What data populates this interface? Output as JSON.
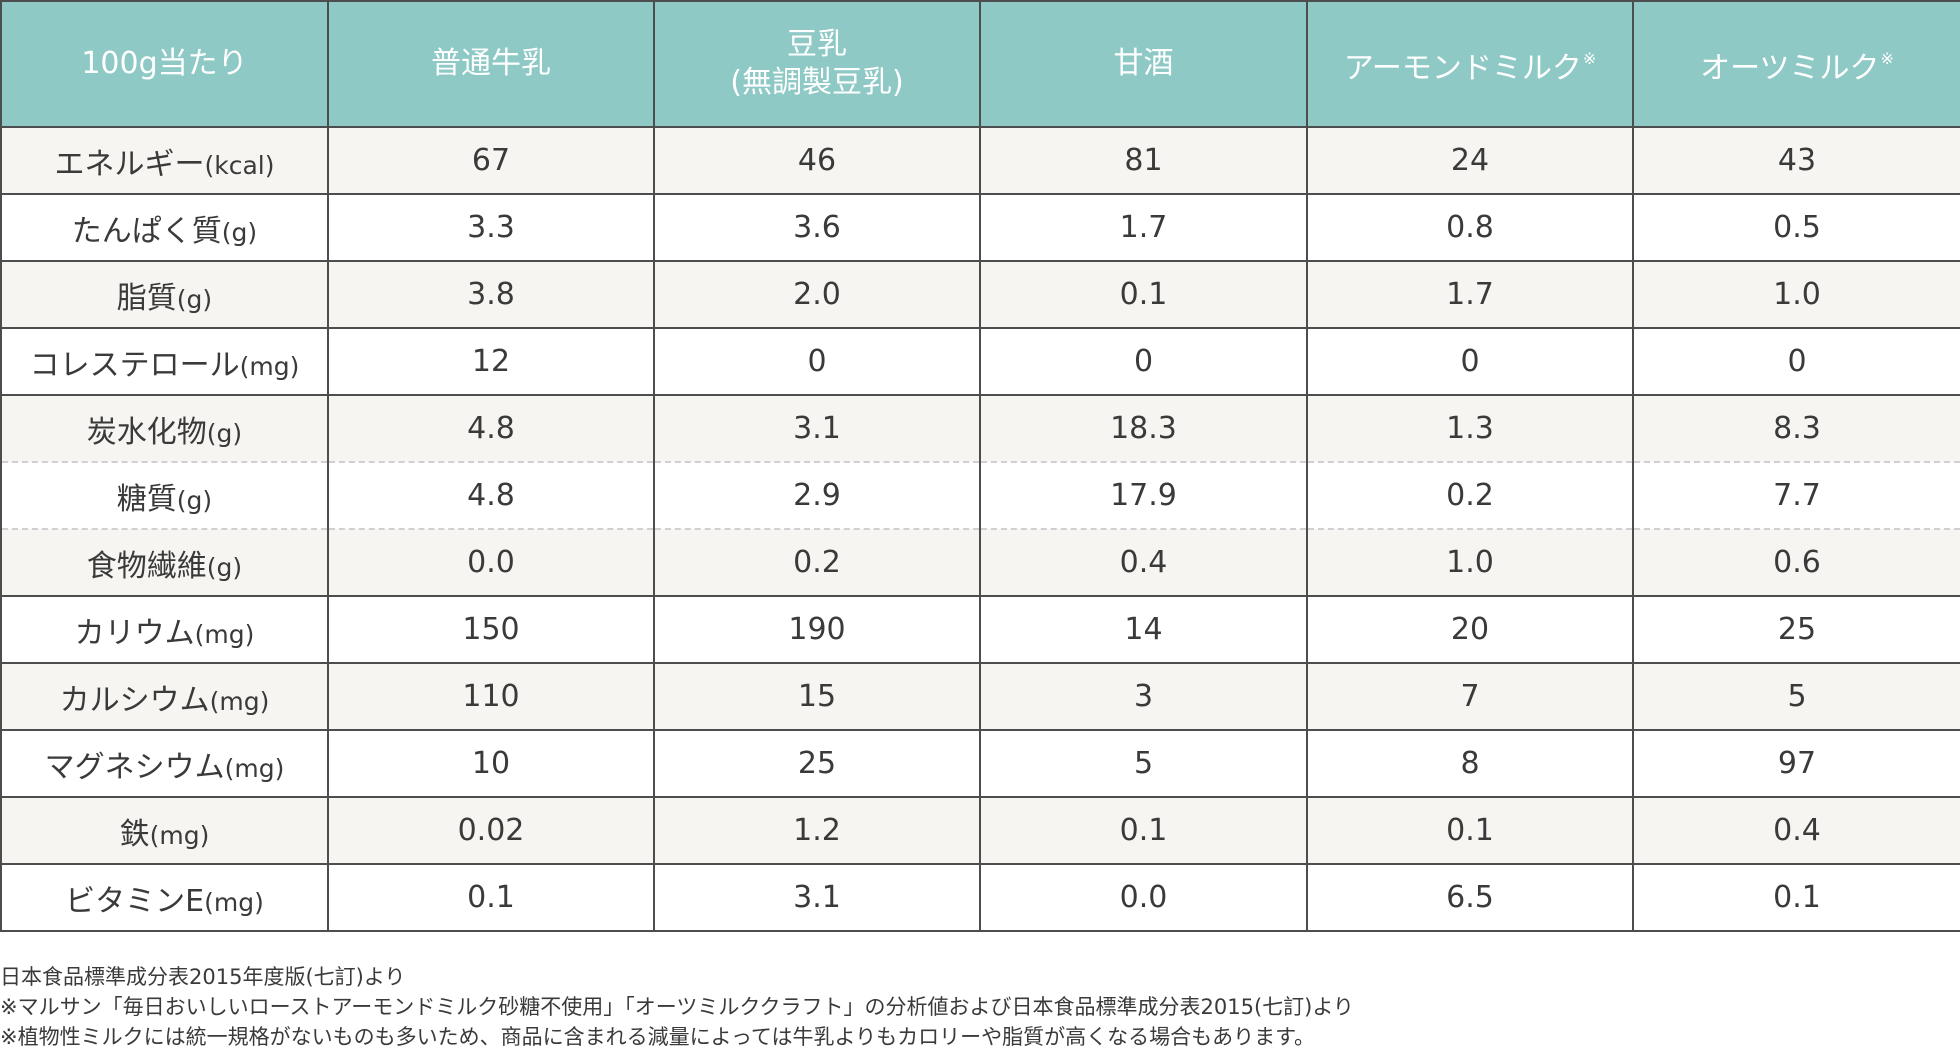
{
  "chart_data": {
    "type": "table",
    "columns": [
      {
        "label": "100g当たり",
        "mark": ""
      },
      {
        "label": "普通牛乳",
        "mark": ""
      },
      {
        "label": "豆乳",
        "label2": "(無調製豆乳)",
        "mark": ""
      },
      {
        "label": "甘酒",
        "mark": ""
      },
      {
        "label": "アーモンドミルク",
        "mark": "※"
      },
      {
        "label": "オーツミルク",
        "mark": "※"
      }
    ],
    "rows": [
      {
        "name": "エネルギー",
        "unit": "(kcal)",
        "values": [
          "67",
          "46",
          "81",
          "24",
          "43"
        ]
      },
      {
        "name": "たんぱく質",
        "unit": "(g)",
        "values": [
          "3.3",
          "3.6",
          "1.7",
          "0.8",
          "0.5"
        ]
      },
      {
        "name": "脂質",
        "unit": "(g)",
        "values": [
          "3.8",
          "2.0",
          "0.1",
          "1.7",
          "1.0"
        ]
      },
      {
        "name": "コレステロール",
        "unit": "(mg)",
        "values": [
          "12",
          "0",
          "0",
          "0",
          "0"
        ]
      },
      {
        "name": "炭水化物",
        "unit": "(g)",
        "values": [
          "4.8",
          "3.1",
          "18.3",
          "1.3",
          "8.3"
        ]
      },
      {
        "name": "糖質",
        "unit": "(g)",
        "values": [
          "4.8",
          "2.9",
          "17.9",
          "0.2",
          "7.7"
        ]
      },
      {
        "name": "食物繊維",
        "unit": "(g)",
        "values": [
          "0.0",
          "0.2",
          "0.4",
          "1.0",
          "0.6"
        ]
      },
      {
        "name": "カリウム",
        "unit": "(mg)",
        "values": [
          "150",
          "190",
          "14",
          "20",
          "25"
        ]
      },
      {
        "name": "カルシウム",
        "unit": "(mg)",
        "values": [
          "110",
          "15",
          "3",
          "7",
          "5"
        ]
      },
      {
        "name": "マグネシウム",
        "unit": "(mg)",
        "values": [
          "10",
          "25",
          "5",
          "8",
          "97"
        ]
      },
      {
        "name": "鉄",
        "unit": "(mg)",
        "values": [
          "0.02",
          "1.2",
          "0.1",
          "0.1",
          "0.4"
        ]
      },
      {
        "name": "ビタミンE",
        "unit": "(mg)",
        "values": [
          "0.1",
          "3.1",
          "0.0",
          "6.5",
          "0.1"
        ]
      }
    ]
  },
  "notes": [
    "日本食品標準成分表2015年度版(七訂)より",
    "※マルサン「毎日おいしいローストアーモンドミルク砂糖不使用」「オーツミルククラフト」の分析値および日本食品標準成分表2015(七訂)より",
    "※植物性ミルクには統一規格がないものも多いため、商品に含まれる減量によっては牛乳よりもカロリーや脂質が高くなる場合もあります。"
  ],
  "colors": {
    "header_bg": "#8ec9c6",
    "header_text": "#ffffff",
    "row_alt_bg": "#f6f5f1",
    "border": "#4d4d4d"
  }
}
